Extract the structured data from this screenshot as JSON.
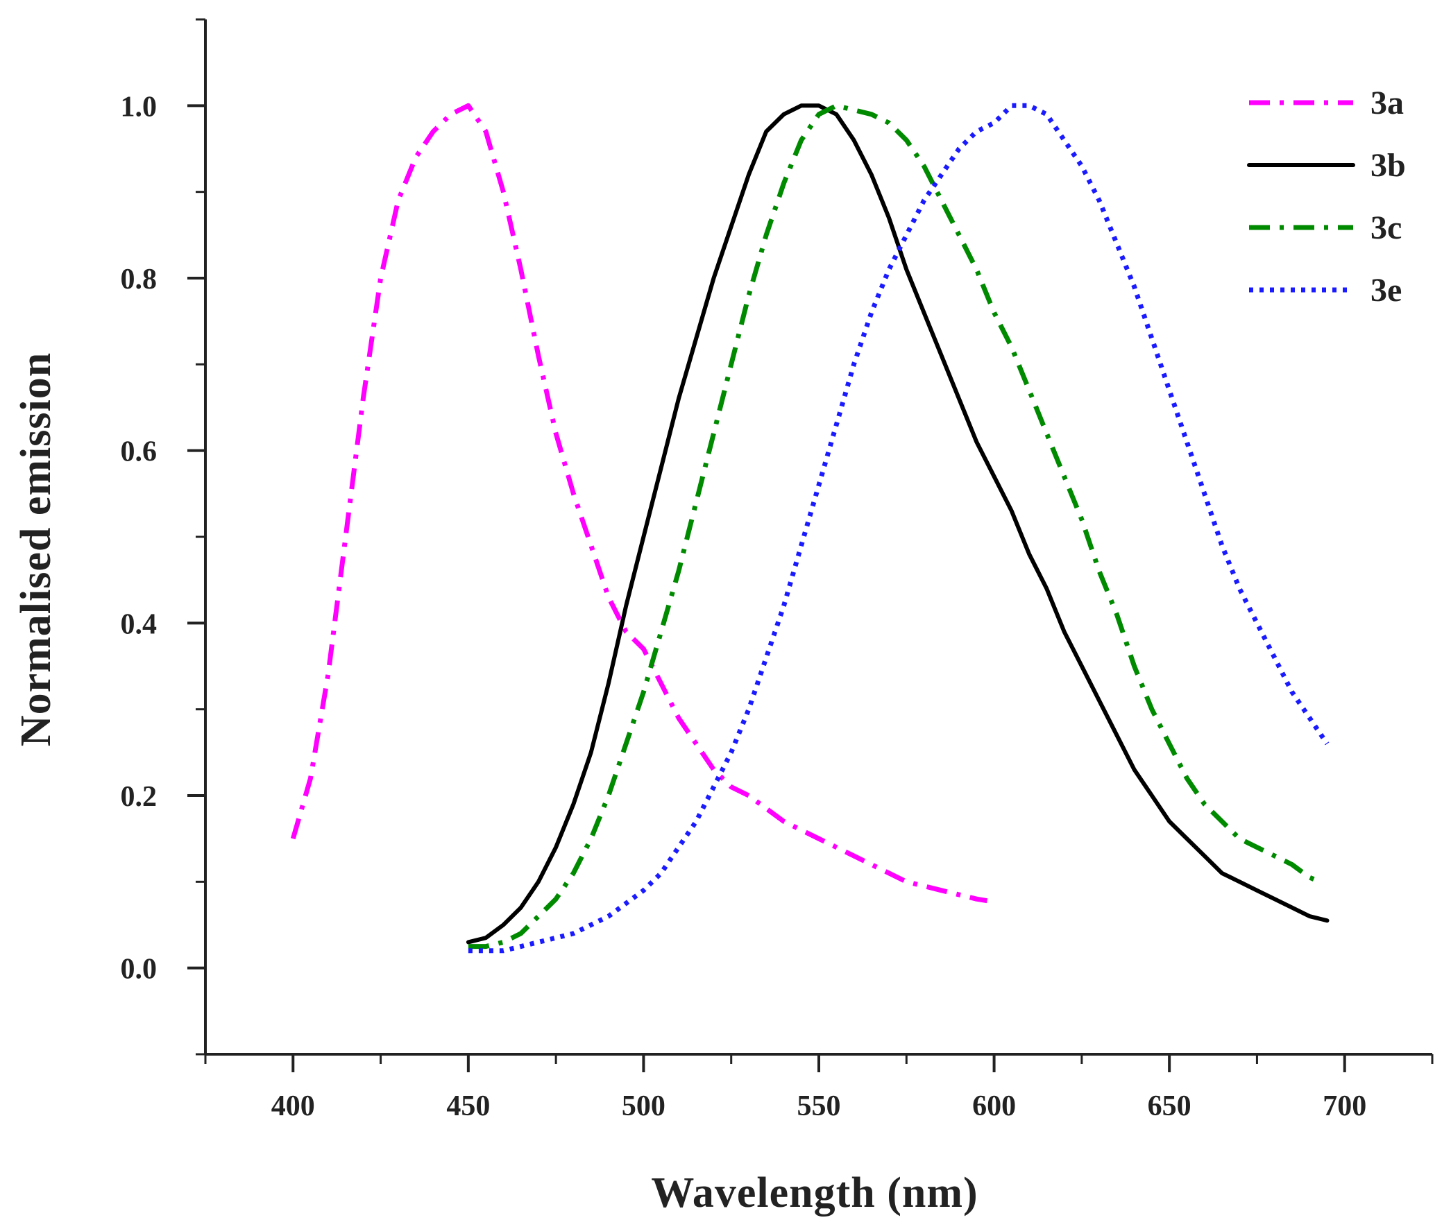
{
  "chart_data": {
    "type": "line",
    "xlabel": "Wavelength (nm)",
    "ylabel": "Normalised emission",
    "xlim": [
      375,
      725
    ],
    "ylim": [
      -0.1,
      1.1
    ],
    "xticks": [
      400,
      450,
      500,
      550,
      600,
      650,
      700
    ],
    "xtick_labels": [
      "400",
      "450",
      "500",
      "550",
      "600",
      "650",
      "700"
    ],
    "yticks": [
      0.0,
      0.2,
      0.4,
      0.6,
      0.8,
      1.0
    ],
    "ytick_labels": [
      "0.0",
      "0.2",
      "0.4",
      "0.6",
      "0.8",
      "1.0"
    ],
    "grid": false,
    "legend_position": "top-right",
    "series": [
      {
        "name": "3a",
        "color": "#ff00ff",
        "style": "dash-dot",
        "x": [
          400,
          405,
          410,
          415,
          420,
          425,
          430,
          435,
          440,
          445,
          450,
          455,
          460,
          465,
          470,
          475,
          480,
          485,
          490,
          495,
          500,
          505,
          510,
          515,
          520,
          525,
          530,
          535,
          540,
          545,
          550,
          555,
          560,
          565,
          570,
          575,
          580,
          585,
          590,
          595,
          598
        ],
        "y": [
          0.15,
          0.22,
          0.34,
          0.5,
          0.66,
          0.8,
          0.89,
          0.94,
          0.97,
          0.99,
          1.0,
          0.97,
          0.9,
          0.81,
          0.71,
          0.62,
          0.55,
          0.49,
          0.43,
          0.39,
          0.37,
          0.33,
          0.29,
          0.26,
          0.23,
          0.21,
          0.2,
          0.185,
          0.17,
          0.16,
          0.15,
          0.14,
          0.13,
          0.12,
          0.11,
          0.1,
          0.095,
          0.09,
          0.085,
          0.08,
          0.078
        ]
      },
      {
        "name": "3b",
        "color": "#000000",
        "style": "solid",
        "x": [
          450,
          455,
          460,
          465,
          470,
          475,
          480,
          485,
          490,
          495,
          500,
          505,
          510,
          515,
          520,
          525,
          530,
          535,
          540,
          545,
          550,
          555,
          560,
          565,
          570,
          575,
          580,
          585,
          590,
          595,
          600,
          605,
          610,
          615,
          620,
          625,
          630,
          635,
          640,
          645,
          650,
          655,
          660,
          665,
          670,
          675,
          680,
          685,
          690,
          695
        ],
        "y": [
          0.03,
          0.035,
          0.05,
          0.07,
          0.1,
          0.14,
          0.19,
          0.25,
          0.33,
          0.42,
          0.5,
          0.58,
          0.66,
          0.73,
          0.8,
          0.86,
          0.92,
          0.97,
          0.99,
          1.0,
          1.0,
          0.99,
          0.96,
          0.92,
          0.87,
          0.81,
          0.76,
          0.71,
          0.66,
          0.61,
          0.57,
          0.53,
          0.48,
          0.44,
          0.39,
          0.35,
          0.31,
          0.27,
          0.23,
          0.2,
          0.17,
          0.15,
          0.13,
          0.11,
          0.1,
          0.09,
          0.08,
          0.07,
          0.06,
          0.055
        ]
      },
      {
        "name": "3c",
        "color": "#008a00",
        "style": "dash-dot",
        "x": [
          450,
          455,
          460,
          465,
          470,
          475,
          480,
          485,
          490,
          495,
          500,
          505,
          510,
          515,
          520,
          525,
          530,
          535,
          540,
          545,
          550,
          555,
          560,
          565,
          570,
          575,
          580,
          585,
          590,
          595,
          600,
          605,
          610,
          615,
          620,
          625,
          630,
          635,
          640,
          645,
          650,
          655,
          660,
          665,
          670,
          675,
          680,
          685,
          690,
          693
        ],
        "y": [
          0.025,
          0.025,
          0.03,
          0.04,
          0.06,
          0.08,
          0.11,
          0.15,
          0.2,
          0.26,
          0.32,
          0.39,
          0.46,
          0.54,
          0.62,
          0.7,
          0.78,
          0.85,
          0.91,
          0.96,
          0.99,
          1.0,
          0.995,
          0.99,
          0.98,
          0.96,
          0.93,
          0.89,
          0.85,
          0.81,
          0.76,
          0.72,
          0.67,
          0.62,
          0.57,
          0.52,
          0.46,
          0.41,
          0.35,
          0.3,
          0.26,
          0.22,
          0.19,
          0.17,
          0.15,
          0.14,
          0.13,
          0.12,
          0.105,
          0.1
        ]
      },
      {
        "name": "3e",
        "color": "#1a1aff",
        "style": "dotted",
        "x": [
          450,
          455,
          460,
          465,
          470,
          475,
          480,
          485,
          490,
          495,
          500,
          505,
          510,
          515,
          520,
          525,
          530,
          535,
          540,
          545,
          550,
          555,
          560,
          565,
          570,
          575,
          580,
          585,
          590,
          595,
          600,
          605,
          610,
          615,
          620,
          625,
          630,
          635,
          640,
          645,
          650,
          655,
          660,
          665,
          670,
          675,
          680,
          685,
          690,
          695
        ],
        "y": [
          0.02,
          0.02,
          0.02,
          0.025,
          0.03,
          0.035,
          0.04,
          0.05,
          0.06,
          0.075,
          0.09,
          0.11,
          0.14,
          0.17,
          0.21,
          0.25,
          0.3,
          0.36,
          0.42,
          0.49,
          0.56,
          0.63,
          0.7,
          0.76,
          0.81,
          0.85,
          0.89,
          0.92,
          0.95,
          0.97,
          0.98,
          1.0,
          1.0,
          0.99,
          0.96,
          0.93,
          0.89,
          0.84,
          0.79,
          0.73,
          0.67,
          0.61,
          0.55,
          0.49,
          0.44,
          0.4,
          0.36,
          0.32,
          0.29,
          0.26
        ]
      }
    ]
  }
}
